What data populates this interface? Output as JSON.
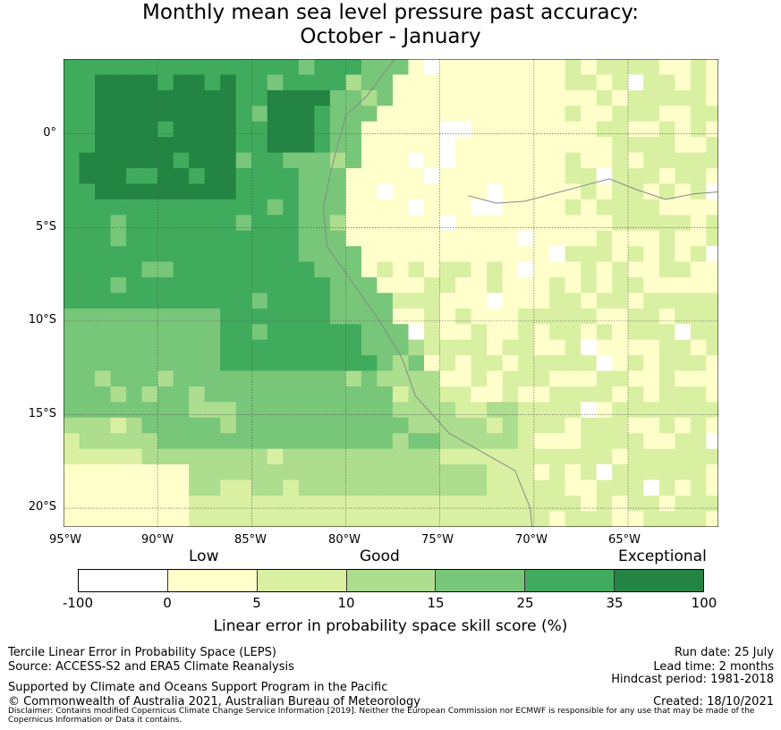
{
  "title": {
    "line1": "Monthly mean sea level pressure past accuracy:",
    "line2": "October - January"
  },
  "map": {
    "lon_range": [
      -95,
      -60.2
    ],
    "lat_range": [
      -21,
      4
    ],
    "y_ticks": [
      "0°",
      "5°S",
      "10°S",
      "15°S",
      "20°S"
    ],
    "y_tick_values": [
      0,
      -5,
      -10,
      -15,
      -20
    ],
    "x_ticks": [
      "95°W",
      "90°W",
      "85°W",
      "80°W",
      "75°W",
      "70°W",
      "65°W"
    ],
    "x_tick_values": [
      -95,
      -90,
      -85,
      -80,
      -75,
      -70,
      -65
    ],
    "grid": true,
    "coastline_color": "#888888",
    "category_colors": [
      "#ffffff",
      "#ffffcc",
      "#d9f0a3",
      "#addd8e",
      "#78c679",
      "#41ab5d",
      "#238443"
    ]
  },
  "legend": {
    "categories": [
      "Low",
      "Good",
      "Exceptional"
    ],
    "colors": [
      "#ffffff",
      "#ffffcc",
      "#d9f0a3",
      "#addd8e",
      "#78c679",
      "#41ab5d",
      "#238443"
    ],
    "ticks": [
      "-100",
      "0",
      "5",
      "10",
      "15",
      "25",
      "35",
      "100"
    ],
    "title": "Linear error in probability space skill score (%)"
  },
  "footer": {
    "left1": "Tercile Linear Error in Probability Space (LEPS)",
    "left2": "Source: ACCESS-S2 and ERA5 Climate Reanalysis",
    "left3": "Supported by Climate and Oceans Support Program in the Pacific",
    "left4": "© Commonwealth of Australia 2021, Australian Bureau of Meteorology",
    "right1": "Run date: 25 July",
    "right2": "Lead time: 2 months",
    "right3": "Hindcast period: 1981-2018",
    "right4": "Created: 18/10/2021",
    "disclaimer": "Disclaimer: Contains modified Copernicus Climate Change Service Information [2019]. Neither the European Commission nor ECMWF is responsible for any use that may be made of the Copernicus Information or Data it contains."
  }
}
